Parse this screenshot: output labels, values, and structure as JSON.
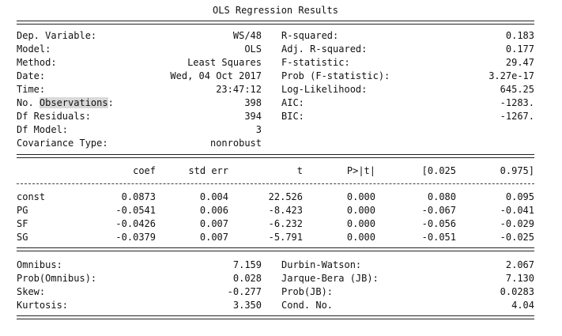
{
  "title": "OLS Regression Results",
  "top_left": [
    {
      "label": "Dep. Variable:",
      "value": "WS/48"
    },
    {
      "label": "Model:",
      "value": "OLS"
    },
    {
      "label": "Method:",
      "value": "Least Squares"
    },
    {
      "label": "Date:",
      "value": "Wed, 04 Oct 2017"
    },
    {
      "label": "Time:",
      "value": "23:47:12"
    },
    {
      "label_pre": "No. ",
      "label_hl": "Observations",
      "label_post": ":",
      "value": "398"
    },
    {
      "label": "Df Residuals:",
      "value": "394"
    },
    {
      "label": "Df Model:",
      "value": "3"
    },
    {
      "label": "Covariance Type:",
      "value": "nonrobust"
    }
  ],
  "top_right": [
    {
      "label": "R-squared:",
      "value": "0.183"
    },
    {
      "label": "Adj. R-squared:",
      "value": "0.177"
    },
    {
      "label": "F-statistic:",
      "value": "29.47"
    },
    {
      "label": "Prob (F-statistic):",
      "value": "3.27e-17"
    },
    {
      "label": "Log-Likelihood:",
      "value": "645.25"
    },
    {
      "label": "AIC:",
      "value": "-1283."
    },
    {
      "label": "BIC:",
      "value": "-1267."
    }
  ],
  "coef_table": {
    "headers": [
      "coef",
      "std err",
      "t",
      "P>|t|",
      "[0.025",
      "0.975]"
    ],
    "rows": [
      {
        "name": "const",
        "values": [
          "0.0873",
          "0.004",
          "22.526",
          "0.000",
          "0.080",
          "0.095"
        ]
      },
      {
        "name": "PG",
        "values": [
          "-0.0541",
          "0.006",
          "-8.423",
          "0.000",
          "-0.067",
          "-0.041"
        ]
      },
      {
        "name": "SF",
        "values": [
          "-0.0426",
          "0.007",
          "-6.232",
          "0.000",
          "-0.056",
          "-0.029"
        ]
      },
      {
        "name": "SG",
        "values": [
          "-0.0379",
          "0.007",
          "-5.791",
          "0.000",
          "-0.051",
          "-0.025"
        ]
      }
    ]
  },
  "bottom_left": [
    {
      "label": "Omnibus:",
      "value": "7.159"
    },
    {
      "label": "Prob(Omnibus):",
      "value": "0.028"
    },
    {
      "label": "Skew:",
      "value": "-0.277"
    },
    {
      "label": "Kurtosis:",
      "value": "3.350"
    }
  ],
  "bottom_right": [
    {
      "label": "Durbin-Watson:",
      "value": "2.067"
    },
    {
      "label": "Jarque-Bera (JB):",
      "value": "7.130"
    },
    {
      "label": "Prob(JB):",
      "value": "0.0283"
    },
    {
      "label": "Cond. No.",
      "value": "4.04"
    }
  ]
}
